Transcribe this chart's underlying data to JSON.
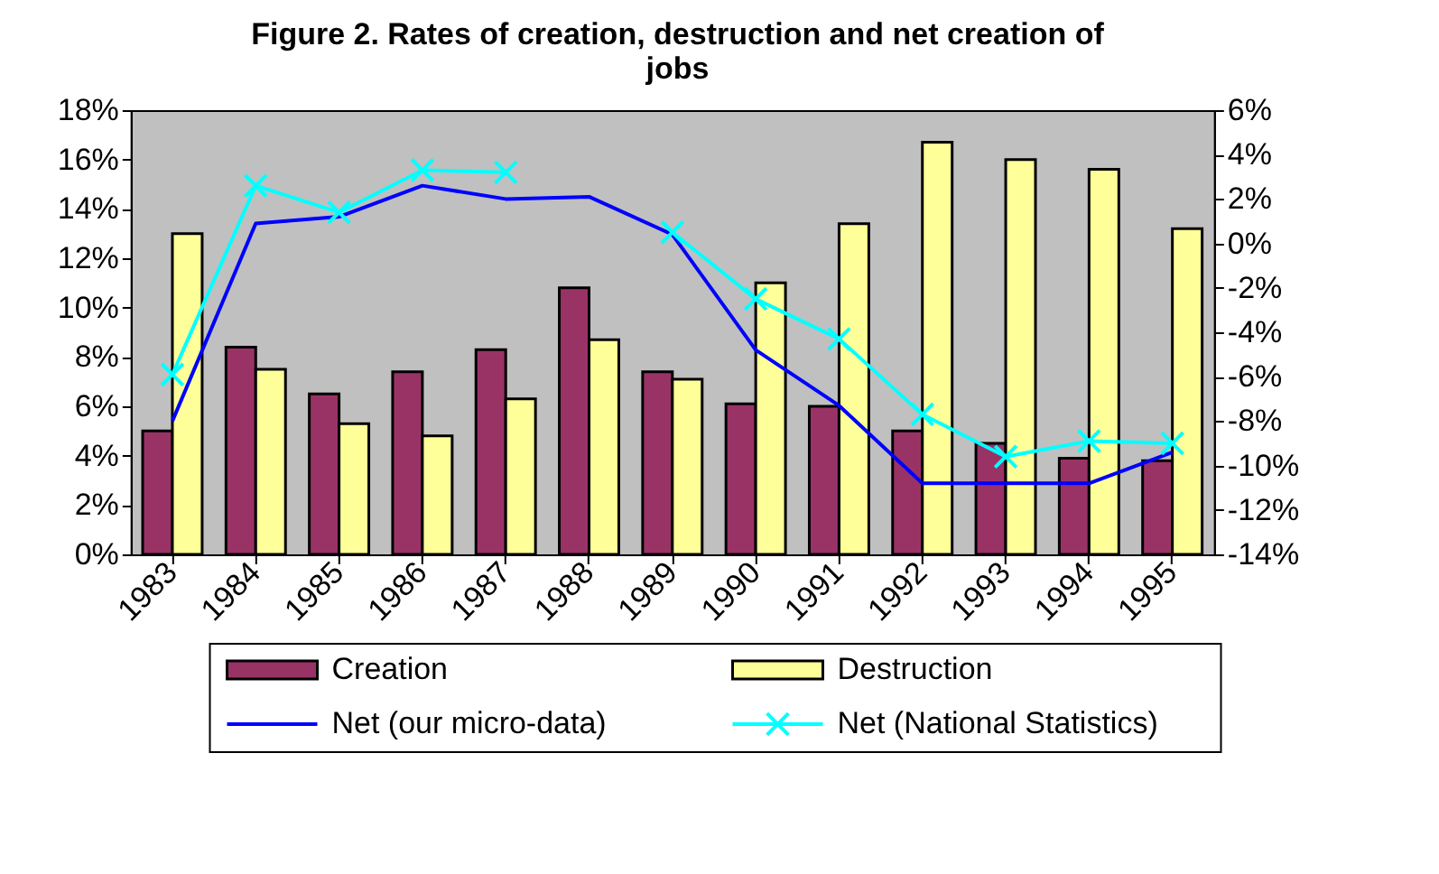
{
  "chart_data": {
    "type": "bar",
    "title": "Figure 2. Rates of creation, destruction and net creation of jobs",
    "categories": [
      "1983",
      "1984",
      "1985",
      "1986",
      "1987",
      "1988",
      "1989",
      "1990",
      "1991",
      "1992",
      "1993",
      "1994",
      "1995"
    ],
    "series": [
      {
        "name": "Creation",
        "color": "#993366",
        "values": [
          5.0,
          8.4,
          6.5,
          7.4,
          8.3,
          10.8,
          7.4,
          6.1,
          6.0,
          5.0,
          4.5,
          3.9,
          3.8
        ]
      },
      {
        "name": "Destruction",
        "color": "#ffff99",
        "values": [
          13.0,
          7.5,
          5.3,
          4.8,
          6.3,
          8.7,
          7.1,
          11.0,
          13.4,
          16.7,
          16.0,
          15.6,
          13.2
        ]
      },
      {
        "name": "Net (our micro-data)",
        "type": "line",
        "axis": "y2",
        "marker": "none",
        "color": "#0000ff",
        "values": [
          -8.0,
          0.9,
          1.2,
          2.6,
          2.0,
          2.1,
          0.4,
          -4.8,
          -7.3,
          -10.8,
          -10.8,
          -10.8,
          -9.4
        ]
      },
      {
        "name": "Net (National Statistics)",
        "type": "line",
        "axis": "y2",
        "marker": "cross",
        "color": "#00ffff",
        "values": [
          -5.9,
          2.6,
          1.4,
          3.3,
          3.2,
          null,
          0.5,
          -2.5,
          -4.3,
          -7.7,
          -9.6,
          -8.9,
          -9.0
        ]
      }
    ],
    "ylim": [
      0,
      18
    ],
    "yticks": [
      {
        "value": 0,
        "label": "0%"
      },
      {
        "value": 2,
        "label": "2%"
      },
      {
        "value": 4,
        "label": "4%"
      },
      {
        "value": 6,
        "label": "6%"
      },
      {
        "value": 8,
        "label": "8%"
      },
      {
        "value": 10,
        "label": "10%"
      },
      {
        "value": 12,
        "label": "12%"
      },
      {
        "value": 14,
        "label": "14%"
      },
      {
        "value": 16,
        "label": "16%"
      },
      {
        "value": 18,
        "label": "18%"
      }
    ],
    "y2lim": [
      -14,
      6
    ],
    "y2ticks": [
      {
        "value": -14,
        "label": "-14%"
      },
      {
        "value": -12,
        "label": "-12%"
      },
      {
        "value": -10,
        "label": "-10%"
      },
      {
        "value": -8,
        "label": "-8%"
      },
      {
        "value": -6,
        "label": "-6%"
      },
      {
        "value": -4,
        "label": "-4%"
      },
      {
        "value": -2,
        "label": "-2%"
      },
      {
        "value": 0,
        "label": "0%"
      },
      {
        "value": 2,
        "label": "2%"
      },
      {
        "value": 4,
        "label": "4%"
      },
      {
        "value": 6,
        "label": "6%"
      }
    ],
    "grid": false,
    "legend": "bottom"
  }
}
